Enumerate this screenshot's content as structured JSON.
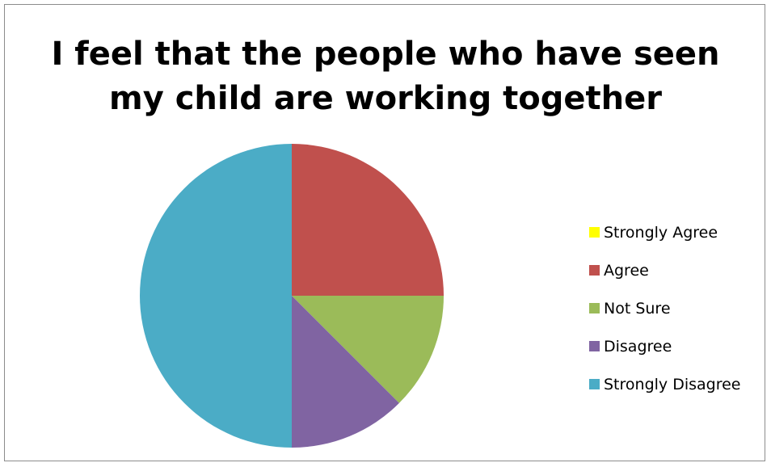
{
  "chart_data": {
    "type": "pie",
    "title_lines": [
      "I feel that the people who have seen",
      "my child are working together"
    ],
    "categories": [
      "Strongly Agree",
      "Agree",
      "Not Sure",
      "Disagree",
      "Strongly Disagree"
    ],
    "values": [
      0,
      2,
      1,
      1,
      4
    ],
    "colors": [
      "#ffff00",
      "#c0504d",
      "#9bbb59",
      "#8064a2",
      "#4bacc6"
    ],
    "legend_position": "right",
    "start_angle": "12 o'clock, clockwise"
  }
}
